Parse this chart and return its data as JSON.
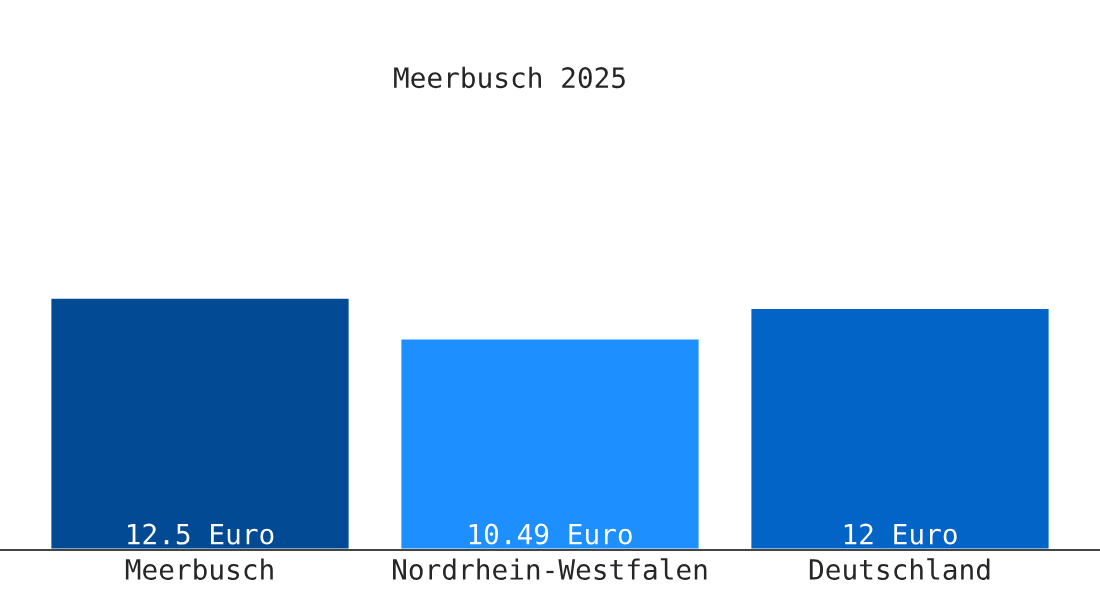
{
  "chart_data": {
    "type": "bar",
    "title": "Meerbusch 2025",
    "categories": [
      "Meerbusch",
      "Nordrhein-Westfalen",
      "Deutschland"
    ],
    "values": [
      12.5,
      10.49,
      12
    ],
    "colors": [
      "#024b94",
      "#1e8fff",
      "#0364c8"
    ],
    "value_labels": [
      "12.5 Euro",
      "10.49 Euro",
      "12 Euro"
    ],
    "grid": false,
    "legend": false,
    "tick_labels": "x"
  }
}
